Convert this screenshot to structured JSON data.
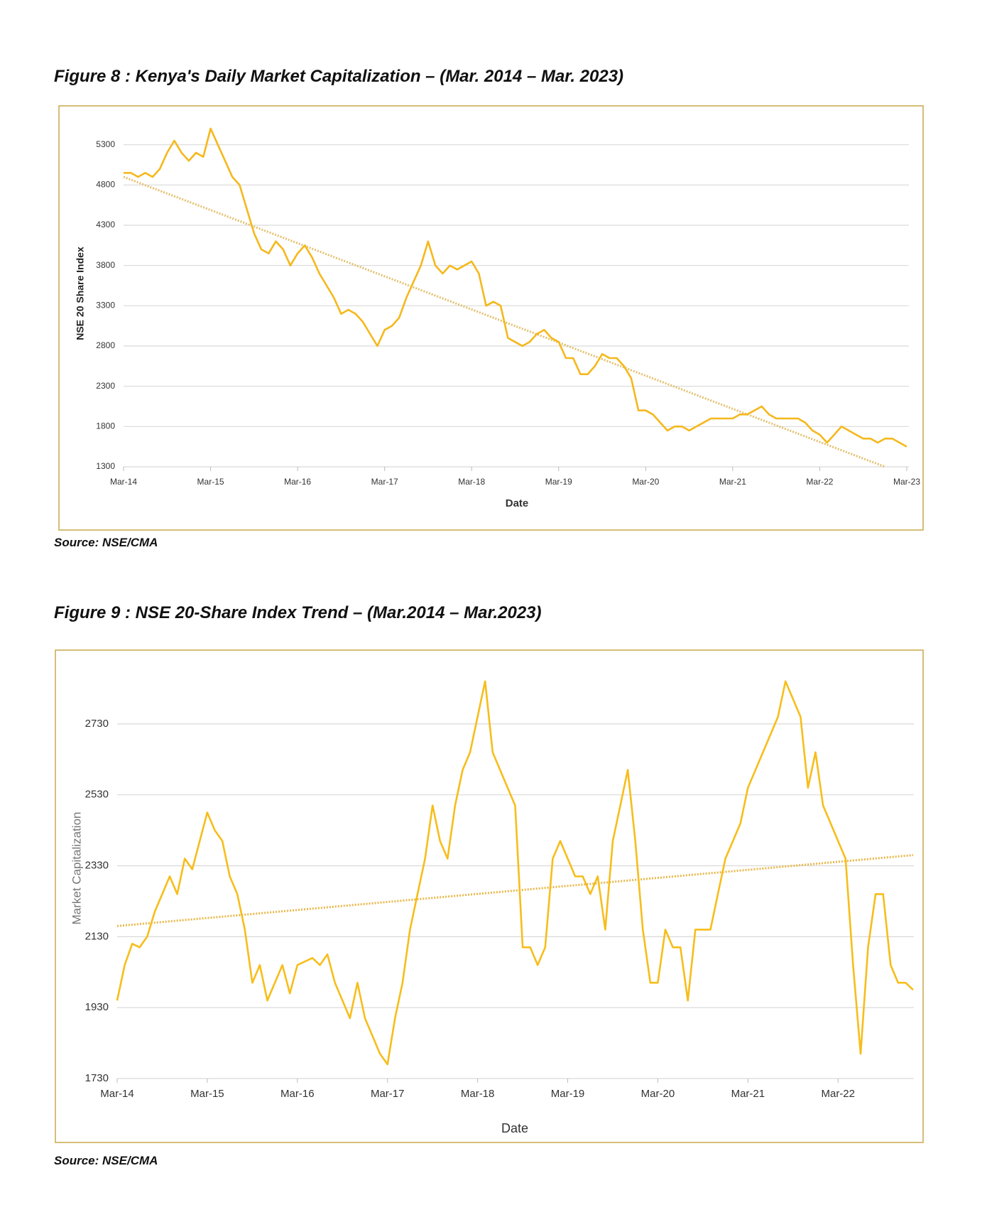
{
  "chart_data": [
    {
      "type": "line",
      "title": "Figure 8 : Kenya's Daily Market Capitalization – (Mar. 2014 – Mar. 2023)",
      "source": "Source: NSE/CMA",
      "x_label": "Date",
      "y_label": "NSE 20 Share Index",
      "x": [
        0,
        1,
        2,
        3,
        4,
        5,
        6,
        7,
        8,
        9,
        10,
        11,
        12,
        13,
        14,
        15,
        16,
        17,
        18,
        19,
        20,
        21,
        22,
        23,
        24,
        25,
        26,
        27,
        28,
        29,
        30,
        31,
        32,
        33,
        34,
        35,
        36,
        37,
        38,
        39,
        40,
        41,
        42,
        43,
        44,
        45,
        46,
        47,
        48,
        49,
        50,
        51,
        52,
        53,
        54,
        55,
        56,
        57,
        58,
        59,
        60,
        61,
        62,
        63,
        64,
        65,
        66,
        67,
        68,
        69,
        70,
        71,
        72,
        73,
        74,
        75,
        76,
        77,
        78,
        79,
        80,
        81,
        82,
        83,
        84,
        85,
        86,
        87,
        88,
        89,
        90,
        91,
        92,
        93,
        94,
        95,
        96,
        97,
        98,
        99,
        100,
        101,
        102,
        103,
        104,
        105,
        106,
        107,
        108
      ],
      "series": [
        {
          "color": "#f5b81c",
          "values": [
            4950,
            4950,
            4900,
            4950,
            4900,
            5000,
            5200,
            5350,
            5200,
            5100,
            5200,
            5150,
            5500,
            5300,
            5100,
            4900,
            4800,
            4500,
            4200,
            4000,
            3950,
            4100,
            4000,
            3800,
            3950,
            4050,
            3900,
            3700,
            3550,
            3400,
            3200,
            3250,
            3200,
            3100,
            2950,
            2800,
            3000,
            3050,
            3150,
            3400,
            3600,
            3800,
            4100,
            3800,
            3700,
            3800,
            3750,
            3800,
            3850,
            3700,
            3300,
            3350,
            3300,
            2900,
            2850,
            2800,
            2850,
            2950,
            3000,
            2900,
            2850,
            2650,
            2650,
            2450,
            2450,
            2550,
            2700,
            2650,
            2650,
            2550,
            2400,
            2000,
            2000,
            1950,
            1850,
            1750,
            1800,
            1800,
            1750,
            1800,
            1850,
            1900,
            1900,
            1900,
            1900,
            1950,
            1950,
            2000,
            2050,
            1950,
            1900,
            1900,
            1900,
            1900,
            1850,
            1750,
            1700,
            1600,
            1700,
            1800,
            1750,
            1700,
            1650,
            1650,
            1600,
            1650,
            1650,
            1600,
            1550
          ]
        }
      ],
      "trendline": {
        "color": "#e3c06e",
        "x": [
          0,
          105
        ],
        "values": [
          4900,
          1300
        ]
      },
      "xlim": [
        0,
        108
      ],
      "ylim": [
        1300,
        5650
      ],
      "xticks": [
        {
          "value": 0,
          "label": "Mar-14"
        },
        {
          "value": 12,
          "label": "Mar-15"
        },
        {
          "value": 24,
          "label": "Mar-16"
        },
        {
          "value": 36,
          "label": "Mar-17"
        },
        {
          "value": 48,
          "label": "Mar-18"
        },
        {
          "value": 60,
          "label": "Mar-19"
        },
        {
          "value": 72,
          "label": "Mar-20"
        },
        {
          "value": 84,
          "label": "Mar-21"
        },
        {
          "value": 96,
          "label": "Mar-22"
        },
        {
          "value": 108,
          "label": "Mar-23"
        }
      ],
      "yticks": [
        1300,
        1800,
        2300,
        2800,
        3300,
        3800,
        4300,
        4800,
        5300
      ],
      "grid": true
    },
    {
      "type": "line",
      "title": "Figure 9 : NSE 20-Share Index Trend – (Mar.2014 – Mar.2023)",
      "source": "Source: NSE/CMA",
      "x_label": "Date",
      "y_label": "Market Capitalization",
      "x": [
        0,
        1,
        2,
        3,
        4,
        5,
        6,
        7,
        8,
        9,
        10,
        11,
        12,
        13,
        14,
        15,
        16,
        17,
        18,
        19,
        20,
        21,
        22,
        23,
        24,
        25,
        26,
        27,
        28,
        29,
        30,
        31,
        32,
        33,
        34,
        35,
        36,
        37,
        38,
        39,
        40,
        41,
        42,
        43,
        44,
        45,
        46,
        47,
        48,
        49,
        50,
        51,
        52,
        53,
        54,
        55,
        56,
        57,
        58,
        59,
        60,
        61,
        62,
        63,
        64,
        65,
        66,
        67,
        68,
        69,
        70,
        71,
        72,
        73,
        74,
        75,
        76,
        77,
        78,
        79,
        80,
        81,
        82,
        83,
        84,
        85,
        86,
        87,
        88,
        89,
        90,
        91,
        92,
        93,
        94,
        95,
        96,
        97,
        98,
        99,
        100,
        101,
        102,
        103,
        104,
        105,
        106
      ],
      "series": [
        {
          "color": "#f7bd1a",
          "values": [
            1950,
            2050,
            2110,
            2100,
            2130,
            2200,
            2250,
            2300,
            2250,
            2350,
            2320,
            2400,
            2480,
            2430,
            2400,
            2300,
            2250,
            2150,
            2000,
            2050,
            1950,
            2000,
            2050,
            1970,
            2050,
            2060,
            2070,
            2050,
            2080,
            2000,
            1950,
            1900,
            2000,
            1900,
            1850,
            1800,
            1770,
            1900,
            2000,
            2150,
            2250,
            2350,
            2500,
            2400,
            2350,
            2500,
            2600,
            2650,
            2750,
            2850,
            2650,
            2600,
            2550,
            2500,
            2100,
            2100,
            2050,
            2100,
            2350,
            2400,
            2350,
            2300,
            2300,
            2250,
            2300,
            2150,
            2400,
            2500,
            2600,
            2400,
            2150,
            2000,
            2000,
            2150,
            2100,
            2100,
            1950,
            2150,
            2150,
            2150,
            2250,
            2350,
            2400,
            2450,
            2550,
            2600,
            2650,
            2700,
            2750,
            2850,
            2800,
            2750,
            2550,
            2650,
            2500,
            2450,
            2400,
            2350,
            2050,
            1800,
            2100,
            2250,
            2250,
            2050,
            2000,
            2000,
            1980
          ]
        }
      ],
      "trendline": {
        "color": "#e8b84a",
        "x": [
          0,
          106
        ],
        "values": [
          2160,
          2360
        ]
      },
      "xlim": [
        0,
        106
      ],
      "ylim": [
        1730,
        2910
      ],
      "xticks": [
        {
          "value": 0,
          "label": "Mar-14"
        },
        {
          "value": 12,
          "label": "Mar-15"
        },
        {
          "value": 24,
          "label": "Mar-16"
        },
        {
          "value": 36,
          "label": "Mar-17"
        },
        {
          "value": 48,
          "label": "Mar-18"
        },
        {
          "value": 60,
          "label": "Mar-19"
        },
        {
          "value": 72,
          "label": "Mar-20"
        },
        {
          "value": 84,
          "label": "Mar-21"
        },
        {
          "value": 96,
          "label": "Mar-22"
        }
      ],
      "yticks": [
        1730,
        1930,
        2130,
        2330,
        2530,
        2730
      ],
      "grid": true
    }
  ]
}
